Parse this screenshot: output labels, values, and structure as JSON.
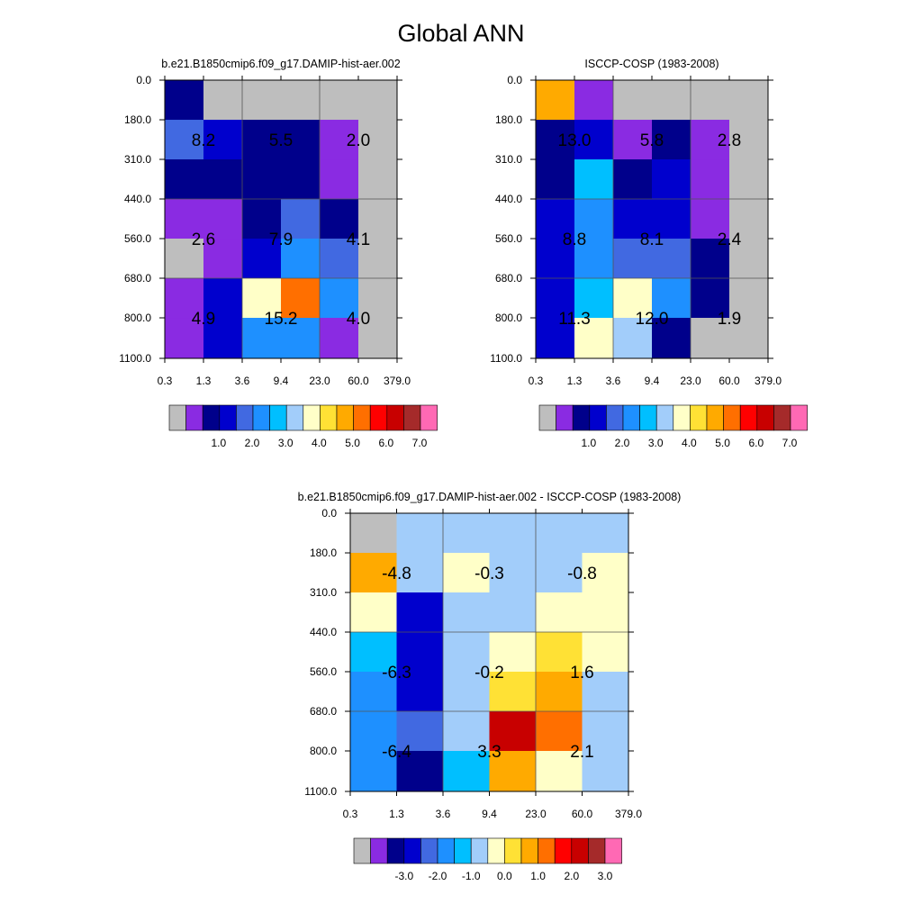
{
  "figure_title": "Global ANN",
  "colors": {
    "missing": "#bebebe",
    "abs_palette": [
      "#bebebe",
      "#8a2be2",
      "#00008b",
      "#0000cd",
      "#4169e1",
      "#1e90ff",
      "#00bfff",
      "#a2cdfa",
      "#ffffc8",
      "#ffe135",
      "#ffaa00",
      "#ff6f00",
      "#ff0000",
      "#c80000",
      "#a52a2a",
      "#ff69b4"
    ],
    "diff_palette": [
      "#bebebe",
      "#8a2be2",
      "#00008b",
      "#0000cd",
      "#4169e1",
      "#1e90ff",
      "#00bfff",
      "#a2cdfa",
      "#ffffc8",
      "#ffe135",
      "#ffaa00",
      "#ff6f00",
      "#ff0000",
      "#c80000",
      "#a52a2a",
      "#ff69b4"
    ]
  },
  "chart_data": [
    {
      "type": "heatmap",
      "title": "b.e21.B1850cmip6.f09_g17.DAMIP-hist-aer.002",
      "x_ticks": [
        "0.3",
        "1.3",
        "3.6",
        "9.4",
        "23.0",
        "60.0",
        "379.0"
      ],
      "y_ticks": [
        "0.0",
        "180.0",
        "310.0",
        "440.0",
        "560.0",
        "680.0",
        "800.0",
        "1100.0"
      ],
      "cell_colors": [
        [
          2,
          0,
          0,
          0,
          0,
          0
        ],
        [
          4,
          3,
          2,
          2,
          1,
          0
        ],
        [
          2,
          2,
          2,
          2,
          1,
          0
        ],
        [
          1,
          1,
          2,
          4,
          2,
          0
        ],
        [
          0,
          1,
          3,
          5,
          4,
          0
        ],
        [
          1,
          3,
          8,
          11,
          5,
          0
        ],
        [
          1,
          3,
          5,
          5,
          1,
          0
        ]
      ],
      "labels": [
        {
          "text": "8.2",
          "col": 0.5,
          "row": 1.5
        },
        {
          "text": "5.5",
          "col": 2.5,
          "row": 1.5
        },
        {
          "text": "2.0",
          "col": 4.5,
          "row": 1.5
        },
        {
          "text": "2.6",
          "col": 0.5,
          "row": 4.0
        },
        {
          "text": "7.9",
          "col": 2.5,
          "row": 4.0
        },
        {
          "text": "4.1",
          "col": 4.5,
          "row": 4.0
        },
        {
          "text": "4.9",
          "col": 0.5,
          "row": 6.0
        },
        {
          "text": "15.2",
          "col": 2.5,
          "row": 6.0
        },
        {
          "text": "4.0",
          "col": 4.5,
          "row": 6.0
        }
      ],
      "colorbar_labels": [
        "1.0",
        "2.0",
        "3.0",
        "4.0",
        "5.0",
        "6.0",
        "7.0"
      ]
    },
    {
      "type": "heatmap",
      "title": "ISCCP-COSP (1983-2008)",
      "x_ticks": [
        "0.3",
        "1.3",
        "3.6",
        "9.4",
        "23.0",
        "60.0",
        "379.0"
      ],
      "y_ticks": [
        "0.0",
        "180.0",
        "310.0",
        "440.0",
        "560.0",
        "680.0",
        "800.0",
        "1100.0"
      ],
      "cell_colors": [
        [
          10,
          1,
          0,
          0,
          0,
          0
        ],
        [
          2,
          3,
          1,
          2,
          1,
          0
        ],
        [
          2,
          6,
          2,
          3,
          1,
          0
        ],
        [
          3,
          5,
          3,
          3,
          1,
          0
        ],
        [
          3,
          5,
          4,
          4,
          2,
          0
        ],
        [
          3,
          6,
          8,
          5,
          2,
          0
        ],
        [
          3,
          8,
          7,
          2,
          0,
          0
        ]
      ],
      "labels": [
        {
          "text": "13.0",
          "col": 0.5,
          "row": 1.5
        },
        {
          "text": "5.8",
          "col": 2.5,
          "row": 1.5
        },
        {
          "text": "2.8",
          "col": 4.5,
          "row": 1.5
        },
        {
          "text": "8.8",
          "col": 0.5,
          "row": 4.0
        },
        {
          "text": "8.1",
          "col": 2.5,
          "row": 4.0
        },
        {
          "text": "2.4",
          "col": 4.5,
          "row": 4.0
        },
        {
          "text": "11.3",
          "col": 0.5,
          "row": 6.0
        },
        {
          "text": "12.0",
          "col": 2.5,
          "row": 6.0
        },
        {
          "text": "1.9",
          "col": 4.5,
          "row": 6.0
        }
      ],
      "colorbar_labels": [
        "1.0",
        "2.0",
        "3.0",
        "4.0",
        "5.0",
        "6.0",
        "7.0"
      ]
    },
    {
      "type": "heatmap",
      "title": "b.e21.B1850cmip6.f09_g17.DAMIP-hist-aer.002 - ISCCP-COSP (1983-2008)",
      "x_ticks": [
        "0.3",
        "1.3",
        "3.6",
        "9.4",
        "23.0",
        "60.0",
        "379.0"
      ],
      "y_ticks": [
        "0.0",
        "180.0",
        "310.0",
        "440.0",
        "560.0",
        "680.0",
        "800.0",
        "1100.0"
      ],
      "cell_colors": [
        [
          0,
          7,
          7,
          7,
          7,
          7
        ],
        [
          10,
          7,
          8,
          7,
          7,
          8
        ],
        [
          8,
          3,
          7,
          7,
          8,
          8
        ],
        [
          6,
          3,
          7,
          8,
          9,
          8
        ],
        [
          5,
          3,
          7,
          9,
          10,
          7
        ],
        [
          5,
          4,
          7,
          13,
          11,
          7
        ],
        [
          5,
          2,
          6,
          10,
          8,
          7
        ]
      ],
      "labels": [
        {
          "text": "-4.8",
          "col": 0.5,
          "row": 1.5
        },
        {
          "text": "-0.3",
          "col": 2.5,
          "row": 1.5
        },
        {
          "text": "-0.8",
          "col": 4.5,
          "row": 1.5
        },
        {
          "text": "-6.3",
          "col": 0.5,
          "row": 4.0
        },
        {
          "text": "-0.2",
          "col": 2.5,
          "row": 4.0
        },
        {
          "text": "1.6",
          "col": 4.5,
          "row": 4.0
        },
        {
          "text": "-6.4",
          "col": 0.5,
          "row": 6.0
        },
        {
          "text": "3.3",
          "col": 2.5,
          "row": 6.0
        },
        {
          "text": "2.1",
          "col": 4.5,
          "row": 6.0
        }
      ],
      "colorbar_labels": [
        "-3.0",
        "-2.0",
        "-1.0",
        "0.0",
        "1.0",
        "2.0",
        "3.0"
      ]
    }
  ]
}
